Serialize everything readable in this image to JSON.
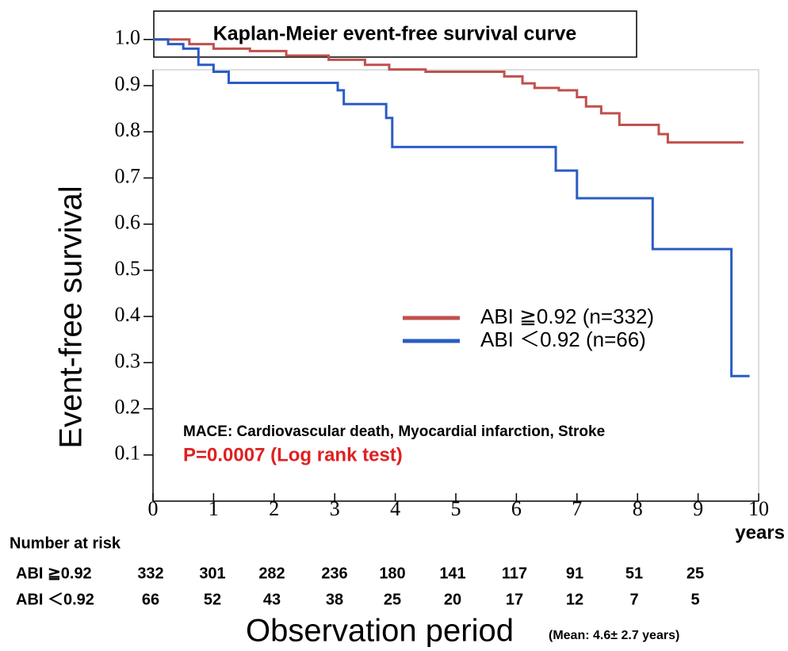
{
  "chart_data": {
    "type": "step",
    "title": "Kaplan-Meier event-free survival curve",
    "ylabel": "Event-free survival",
    "xlabel": "Observation period",
    "xlabel_note": "(Mean: 4.6± 2.7 years)",
    "xunit": "years",
    "annotations": [
      "MACE: Cardiovascular death, Myocardial infarction, Stroke",
      "P=0.0007 (Log rank test)"
    ],
    "xlim": [
      0,
      10
    ],
    "ylim": [
      0,
      1
    ],
    "xticks": [
      0,
      1,
      2,
      3,
      4,
      5,
      6,
      7,
      8,
      9,
      10
    ],
    "yticks": [
      0.1,
      0.2,
      0.3,
      0.4,
      0.5,
      0.6,
      0.7,
      0.8,
      0.9,
      {
        "value": 1,
        "label": "1.0"
      }
    ],
    "series": [
      {
        "name": "ABI ≧0.92 (n=332)",
        "color": "#c0504d",
        "x": [
          0,
          0.6,
          0.6,
          1,
          1,
          1.6,
          1.6,
          2.2,
          2.2,
          2.9,
          2.9,
          3.5,
          3.5,
          3.9,
          3.9,
          4.5,
          4.5,
          5.8,
          5.8,
          6.1,
          6.1,
          6.3,
          6.3,
          6.7,
          6.7,
          7.0,
          7.0,
          7.15,
          7.15,
          7.4,
          7.4,
          7.7,
          7.7,
          8.35,
          8.35,
          8.5,
          8.5,
          9.75
        ],
        "values": [
          1,
          1,
          0.99,
          0.99,
          0.98,
          0.98,
          0.975,
          0.975,
          0.965,
          0.965,
          0.956,
          0.956,
          0.945,
          0.945,
          0.935,
          0.935,
          0.93,
          0.93,
          0.92,
          0.92,
          0.905,
          0.905,
          0.895,
          0.895,
          0.89,
          0.89,
          0.875,
          0.875,
          0.855,
          0.855,
          0.84,
          0.84,
          0.815,
          0.815,
          0.795,
          0.795,
          0.777,
          0.777
        ]
      },
      {
        "name": "ABI ＜0.92 (n=66)",
        "color": "#2a5cc4",
        "x": [
          0,
          0.25,
          0.25,
          0.5,
          0.5,
          0.75,
          0.75,
          1.0,
          1.0,
          1.25,
          1.25,
          3.05,
          3.05,
          3.15,
          3.15,
          3.85,
          3.85,
          3.95,
          3.95,
          6.65,
          6.65,
          7.0,
          7.0,
          8.25,
          8.25,
          9.55,
          9.55,
          9.85
        ],
        "values": [
          1,
          1,
          0.99,
          0.99,
          0.98,
          0.98,
          0.945,
          0.945,
          0.93,
          0.93,
          0.906,
          0.906,
          0.89,
          0.89,
          0.86,
          0.86,
          0.83,
          0.83,
          0.767,
          0.767,
          0.716,
          0.716,
          0.656,
          0.656,
          0.546,
          0.546,
          0.271,
          0.271
        ]
      }
    ],
    "risk_table": {
      "title": "Number at risk",
      "rows": [
        {
          "label": "ABI ≧0.92",
          "values": [
            332,
            301,
            282,
            236,
            180,
            141,
            117,
            91,
            51,
            25
          ]
        },
        {
          "label": "ABI ＜0.92",
          "values": [
            66,
            52,
            43,
            38,
            25,
            20,
            17,
            12,
            7,
            5
          ]
        }
      ]
    }
  }
}
